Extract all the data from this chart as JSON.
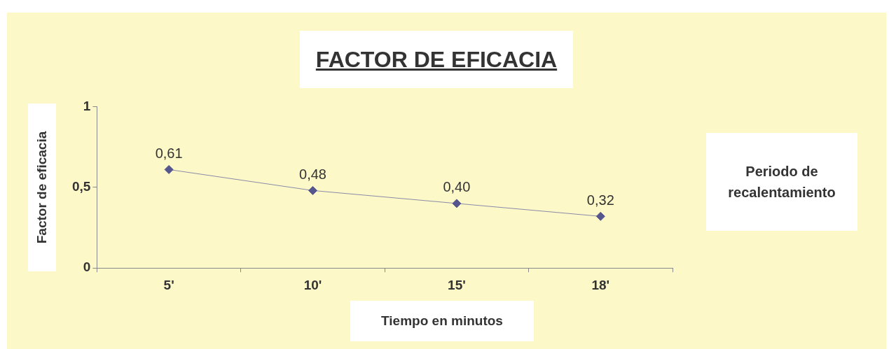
{
  "chart_data": {
    "type": "line",
    "title": "FACTOR DE EFICACIA",
    "xlabel": "Tiempo en minutos",
    "ylabel": "Factor de eficacia",
    "categories": [
      "5'",
      "10'",
      "15'",
      "18'"
    ],
    "series": [
      {
        "color": "#56568f",
        "values": [
          0.61,
          0.48,
          0.4,
          0.32
        ],
        "value_labels": [
          "0,61",
          "0,48",
          "0,40",
          "0,32"
        ]
      }
    ],
    "ylim": [
      0,
      1
    ],
    "yticks": [
      0,
      {
        "value": 0.5,
        "label": "0,5"
      },
      1
    ],
    "grid": false,
    "legend": false,
    "marker": "diamond",
    "line_style": "solid",
    "annotations": [
      "Periodo de recalentamiento"
    ]
  }
}
